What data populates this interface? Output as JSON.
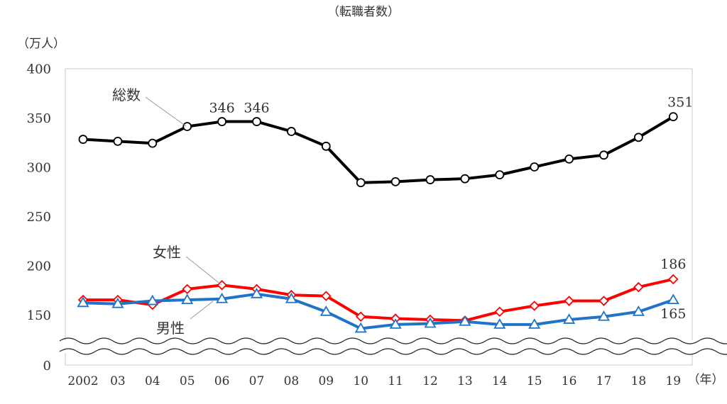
{
  "chart_data": {
    "type": "line",
    "title": "（転職者数）",
    "ylabel": "（万人）",
    "xlabel": "（年）",
    "categories": [
      "2002",
      "03",
      "04",
      "05",
      "06",
      "07",
      "08",
      "09",
      "10",
      "11",
      "12",
      "13",
      "14",
      "15",
      "16",
      "17",
      "18",
      "19"
    ],
    "yticks": [
      0,
      150,
      200,
      250,
      300,
      350,
      400
    ],
    "ytick_labels": [
      "0",
      "150",
      "200",
      "250",
      "300",
      "350",
      "400"
    ],
    "ylim": [
      0,
      400
    ],
    "axis_break": [
      0,
      150
    ],
    "grid": false,
    "series": [
      {
        "name": "総数",
        "color": "#000000",
        "marker": "circle",
        "values": [
          328,
          326,
          324,
          341,
          346,
          346,
          336,
          321,
          284,
          285,
          287,
          288,
          292,
          300,
          308,
          312,
          330,
          351
        ]
      },
      {
        "name": "女性",
        "color": "#ff0000",
        "marker": "diamond",
        "values": [
          165,
          165,
          160,
          176,
          180,
          176,
          170,
          169,
          148,
          146,
          145,
          144,
          153,
          159,
          164,
          164,
          178,
          186
        ]
      },
      {
        "name": "男性",
        "color": "#1f74c8",
        "marker": "triangle",
        "values": [
          162,
          161,
          164,
          165,
          166,
          171,
          166,
          153,
          136,
          140,
          141,
          143,
          140,
          140,
          145,
          148,
          153,
          165
        ]
      }
    ],
    "annotations": [
      {
        "text": "346",
        "series": 0,
        "index": 4
      },
      {
        "text": "346",
        "series": 0,
        "index": 5
      },
      {
        "text": "351",
        "series": 0,
        "index": 17
      },
      {
        "text": "186",
        "series": 1,
        "index": 17
      },
      {
        "text": "165",
        "series": 2,
        "index": 17
      }
    ]
  }
}
